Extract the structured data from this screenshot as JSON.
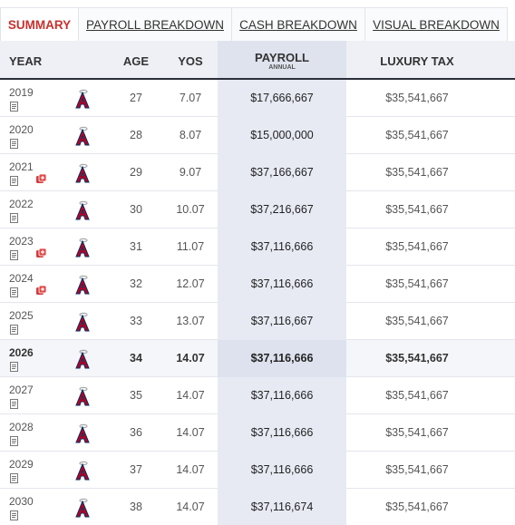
{
  "tabs": [
    "SUMMARY",
    "PAYROLL BREAKDOWN",
    "CASH BREAKDOWN",
    "VISUAL BREAKDOWN"
  ],
  "table": {
    "headers": [
      "YEAR",
      "AGE",
      "YOS",
      "PAYROLL",
      "LUXURY TAX"
    ],
    "payroll_sub": "ANNUAL",
    "rows": [
      {
        "year": 2019,
        "age": 27,
        "yos": 7.07,
        "payroll": "$17,666,667",
        "luxury_tax": "$35,541,667"
      },
      {
        "year": 2020,
        "age": 28,
        "yos": 8.07,
        "payroll": "$15,000,000",
        "luxury_tax": "$35,541,667"
      },
      {
        "year": 2021,
        "age": 29,
        "yos": 9.07,
        "payroll": "$37,166,667",
        "luxury_tax": "$35,541,667"
      },
      {
        "year": 2022,
        "age": 30,
        "yos": 10.07,
        "payroll": "$37,216,667",
        "luxury_tax": "$35,541,667"
      },
      {
        "year": 2023,
        "age": 31,
        "yos": 11.07,
        "payroll": "$37,116,666",
        "luxury_tax": "$35,541,667"
      },
      {
        "year": 2024,
        "age": 32,
        "yos": 12.07,
        "payroll": "$37,116,666",
        "luxury_tax": "$35,541,667"
      },
      {
        "year": 2025,
        "age": 33,
        "yos": 13.07,
        "payroll": "$37,116,667",
        "luxury_tax": "$35,541,667"
      },
      {
        "year": 2026,
        "age": 34,
        "yos": 14.07,
        "payroll": "$37,116,666",
        "luxury_tax": "$35,541,667"
      },
      {
        "year": 2027,
        "age": 35,
        "yos": 14.07,
        "payroll": "$37,116,666",
        "luxury_tax": "$35,541,667"
      },
      {
        "year": 2028,
        "age": 36,
        "yos": 14.07,
        "payroll": "$37,116,666",
        "luxury_tax": "$35,541,667"
      },
      {
        "year": 2029,
        "age": 37,
        "yos": 14.07,
        "payroll": "$37,116,666",
        "luxury_tax": "$35,541,667"
      },
      {
        "year": 2030,
        "age": 38,
        "yos": 14.07,
        "payroll": "$37,116,674",
        "luxury_tax": "$35,541,667"
      }
    ]
  }
}
